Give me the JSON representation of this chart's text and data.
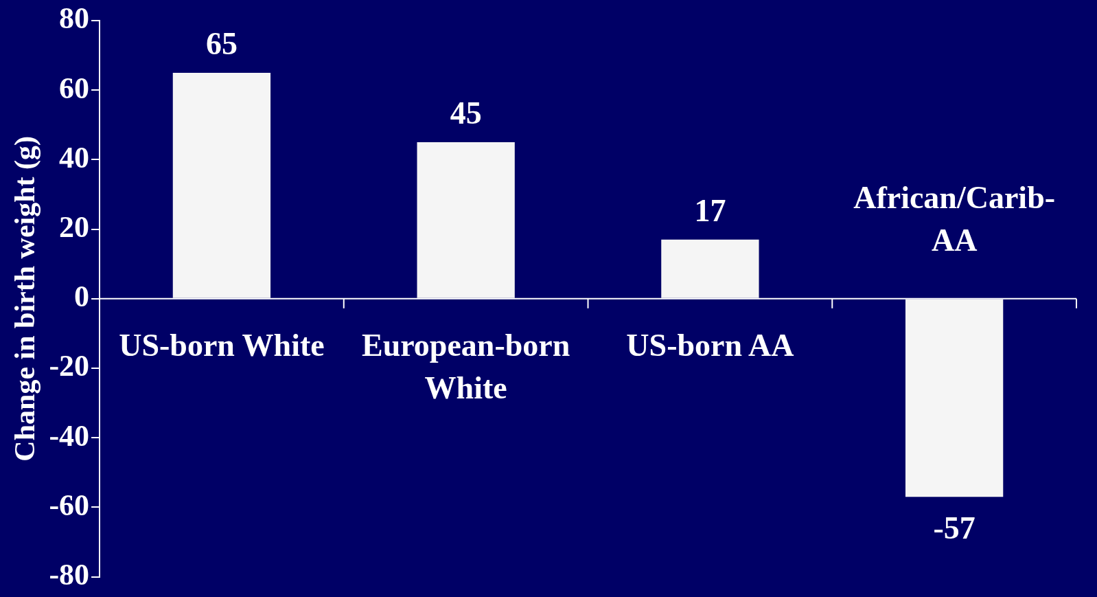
{
  "chart_data": {
    "type": "bar",
    "ylabel": "Change in birth weight (g)",
    "categories": [
      "US-born White",
      "European-born White",
      "US-born AA",
      "African/Carib-AA"
    ],
    "values": [
      65,
      45,
      17,
      -57
    ],
    "color": "#f5f5f5",
    "ylim": [
      -80,
      80
    ],
    "yticks": [
      -80,
      -60,
      -40,
      -20,
      0,
      20,
      40,
      60,
      80
    ],
    "grid": false,
    "legend": false,
    "data_labels": true
  }
}
